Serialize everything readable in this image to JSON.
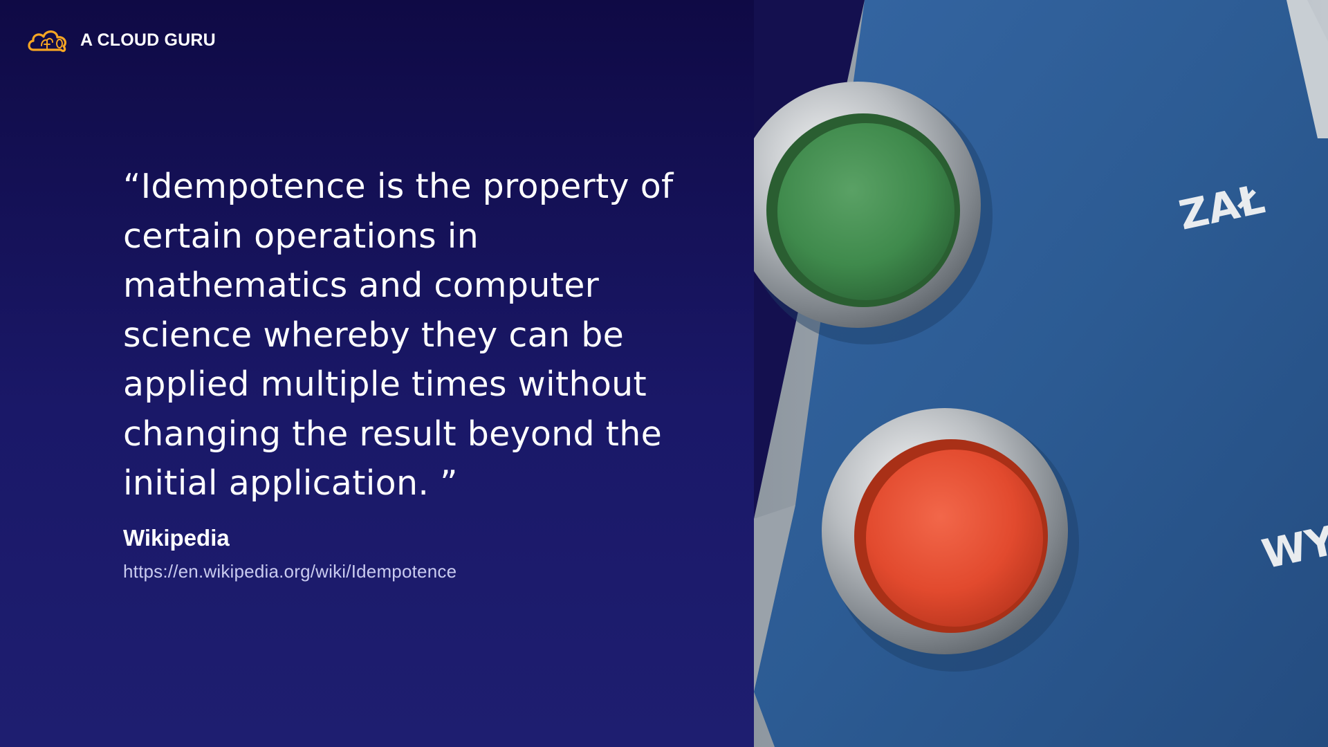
{
  "brand": {
    "name": "A CLOUD GURU",
    "logo_icon": "cloud-logo-icon",
    "accent_color": "#f6a623"
  },
  "quote": {
    "lines": [
      "“Idempotence is the property of",
      "certain operations in",
      "mathematics and computer",
      "science whereby they can be",
      "applied multiple times without",
      "changing the result beyond the",
      "initial application. ”"
    ],
    "source_name": "Wikipedia",
    "source_url": "https://en.wikipedia.org/wiki/Idempotence"
  },
  "photo": {
    "label_top": "ZAŁ",
    "label_bottom": "WY",
    "green_button_color": "#3f8a4c",
    "red_button_color": "#e24a2e",
    "panel_color": "#2e5d96"
  }
}
